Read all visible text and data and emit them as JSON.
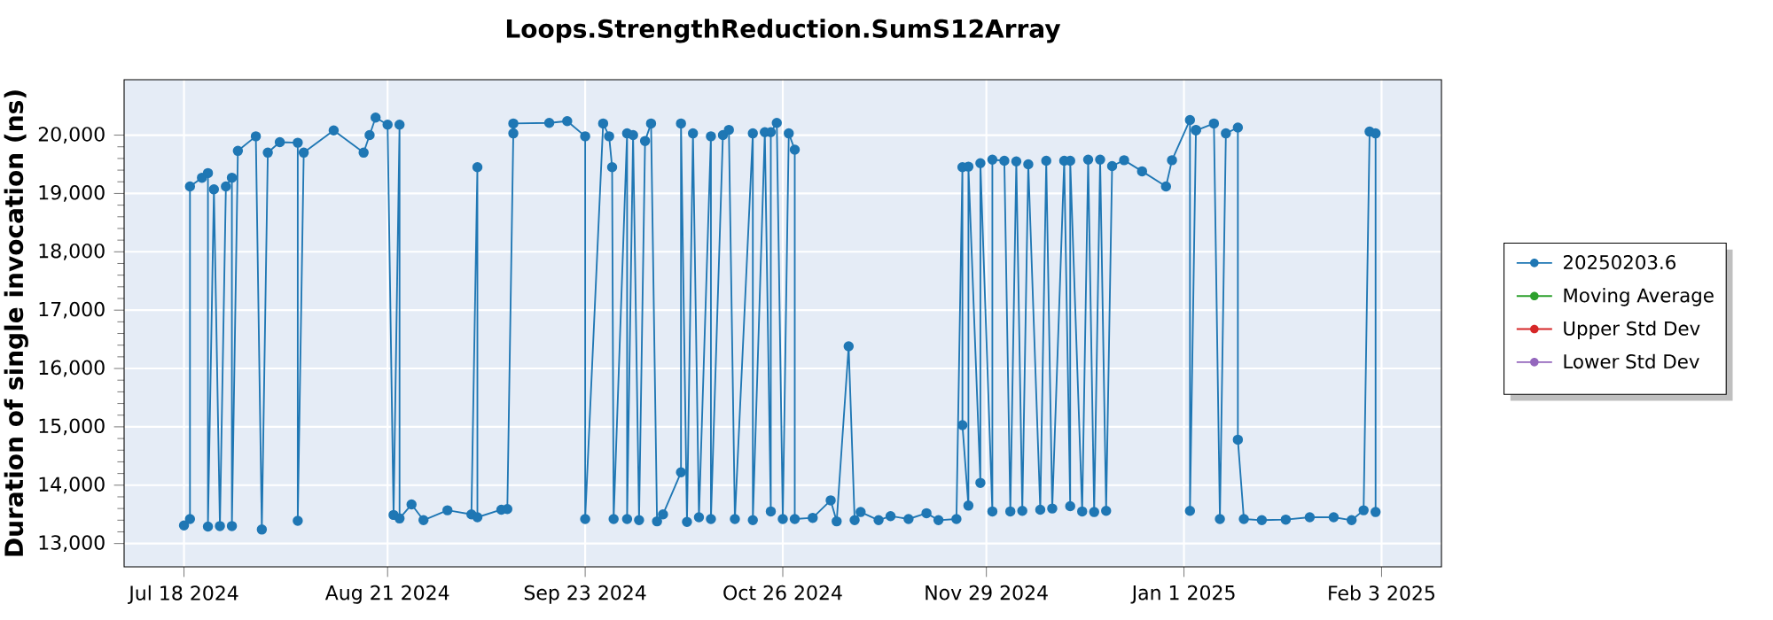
{
  "chart_data": {
    "type": "line",
    "title": "Loops.StrengthReduction.SumS12Array",
    "ylabel": "Duration of single invocation (ns)",
    "xlim": [
      "2024-07-08",
      "2025-02-13"
    ],
    "ylim": [
      12600,
      20950
    ],
    "xticks": [
      {
        "value": "2024-07-18",
        "label": "Jul 18 2024"
      },
      {
        "value": "2024-08-21",
        "label": "Aug 21 2024"
      },
      {
        "value": "2024-09-23",
        "label": "Sep 23 2024"
      },
      {
        "value": "2024-10-26",
        "label": "Oct 26 2024"
      },
      {
        "value": "2024-11-29",
        "label": "Nov 29 2024"
      },
      {
        "value": "2025-01-01",
        "label": "Jan 1 2025"
      },
      {
        "value": "2025-02-03",
        "label": "Feb 3 2025"
      }
    ],
    "yticks": [
      {
        "value": 13000,
        "label": "13,000"
      },
      {
        "value": 14000,
        "label": "14,000"
      },
      {
        "value": 15000,
        "label": "15,000"
      },
      {
        "value": 16000,
        "label": "16,000"
      },
      {
        "value": 17000,
        "label": "17,000"
      },
      {
        "value": 18000,
        "label": "18,000"
      },
      {
        "value": 19000,
        "label": "19,000"
      },
      {
        "value": 20000,
        "label": "20,000"
      }
    ],
    "grid": true,
    "legend": "right",
    "marker": "circle",
    "line_style": "solid",
    "series": [
      {
        "name": "20250203.6",
        "color": "#1f77b4",
        "x": [
          "2024-07-18",
          "2024-07-19",
          "2024-07-19",
          "2024-07-21",
          "2024-07-22",
          "2024-07-22",
          "2024-07-23",
          "2024-07-24",
          "2024-07-25",
          "2024-07-26",
          "2024-07-26",
          "2024-07-27",
          "2024-07-30",
          "2024-07-31",
          "2024-08-01",
          "2024-08-03",
          "2024-08-06",
          "2024-08-06",
          "2024-08-07",
          "2024-08-12",
          "2024-08-17",
          "2024-08-18",
          "2024-08-19",
          "2024-08-21",
          "2024-08-22",
          "2024-08-23",
          "2024-08-23",
          "2024-08-25",
          "2024-08-27",
          "2024-08-31",
          "2024-09-04",
          "2024-09-05",
          "2024-09-05",
          "2024-09-09",
          "2024-09-10",
          "2024-09-11",
          "2024-09-11",
          "2024-09-17",
          "2024-09-20",
          "2024-09-23",
          "2024-09-23",
          "2024-09-26",
          "2024-09-27",
          "2024-09-27T12:00",
          "2024-09-27T18:00",
          "2024-09-30",
          "2024-09-30",
          "2024-10-01",
          "2024-10-02",
          "2024-10-03",
          "2024-10-04",
          "2024-10-05",
          "2024-10-06",
          "2024-10-09",
          "2024-10-09",
          "2024-10-10",
          "2024-10-11",
          "2024-10-12",
          "2024-10-14",
          "2024-10-14",
          "2024-10-16",
          "2024-10-17",
          "2024-10-18",
          "2024-10-21",
          "2024-10-21",
          "2024-10-23",
          "2024-10-24",
          "2024-10-24",
          "2024-10-25",
          "2024-10-26",
          "2024-10-27",
          "2024-10-28",
          "2024-10-28",
          "2024-10-31",
          "2024-11-03",
          "2024-11-04",
          "2024-11-06",
          "2024-11-07",
          "2024-11-08",
          "2024-11-11",
          "2024-11-13",
          "2024-11-16",
          "2024-11-19",
          "2024-11-21",
          "2024-11-24",
          "2024-11-25",
          "2024-11-25",
          "2024-11-26",
          "2024-11-26",
          "2024-11-28",
          "2024-11-28",
          "2024-11-30",
          "2024-11-30",
          "2024-12-02",
          "2024-12-03",
          "2024-12-04",
          "2024-12-05",
          "2024-12-06",
          "2024-12-08",
          "2024-12-09",
          "2024-12-10",
          "2024-12-12",
          "2024-12-13",
          "2024-12-13",
          "2024-12-15",
          "2024-12-16",
          "2024-12-17",
          "2024-12-18",
          "2024-12-19",
          "2024-12-20",
          "2024-12-22",
          "2024-12-25",
          "2024-12-29",
          "2024-12-30",
          "2025-01-02",
          "2025-01-02",
          "2025-01-03",
          "2025-01-03",
          "2025-01-06",
          "2025-01-07",
          "2025-01-08",
          "2025-01-10",
          "2025-01-10",
          "2025-01-11",
          "2025-01-14",
          "2025-01-18",
          "2025-01-22",
          "2025-01-26",
          "2025-01-29",
          "2025-01-31",
          "2025-02-01",
          "2025-02-02",
          "2025-02-02"
        ],
        "values": [
          13310,
          13420,
          19120,
          19270,
          19350,
          13290,
          19070,
          13300,
          19120,
          19270,
          13300,
          19730,
          19980,
          13240,
          19700,
          19880,
          19870,
          13390,
          19700,
          20080,
          19700,
          20000,
          20300,
          20180,
          13490,
          20180,
          13430,
          13670,
          13400,
          13570,
          13500,
          19450,
          13450,
          13580,
          13590,
          20030,
          20200,
          20210,
          20240,
          19980,
          13420,
          20200,
          19980,
          19450,
          13420,
          20030,
          13420,
          20000,
          13400,
          19900,
          20200,
          13380,
          13500,
          14220,
          20200,
          13370,
          20030,
          13450,
          19980,
          13420,
          20000,
          20090,
          13420,
          20030,
          13400,
          20050,
          13550,
          20050,
          20210,
          13420,
          20030,
          19750,
          13420,
          13440,
          13740,
          13380,
          16380,
          13400,
          13540,
          13400,
          13470,
          13420,
          13520,
          13400,
          13420,
          19450,
          15030,
          13650,
          19460,
          14040,
          19520,
          13550,
          19580,
          19560,
          13550,
          19550,
          13560,
          19500,
          13580,
          19560,
          13600,
          19560,
          13640,
          19560,
          13550,
          19580,
          13540,
          19580,
          13560,
          19470,
          19570,
          19380,
          19120,
          19570,
          20260,
          13560,
          20090,
          20080,
          20200,
          13420,
          20030,
          20130,
          14780,
          13420,
          13400,
          13410,
          13450,
          13450,
          13400,
          13570,
          20060,
          20030,
          13540
        ]
      },
      {
        "name": "Moving Average",
        "color": "#2ca02c"
      },
      {
        "name": "Upper Std Dev",
        "color": "#d62728"
      },
      {
        "name": "Lower Std Dev",
        "color": "#9467bd"
      }
    ]
  }
}
